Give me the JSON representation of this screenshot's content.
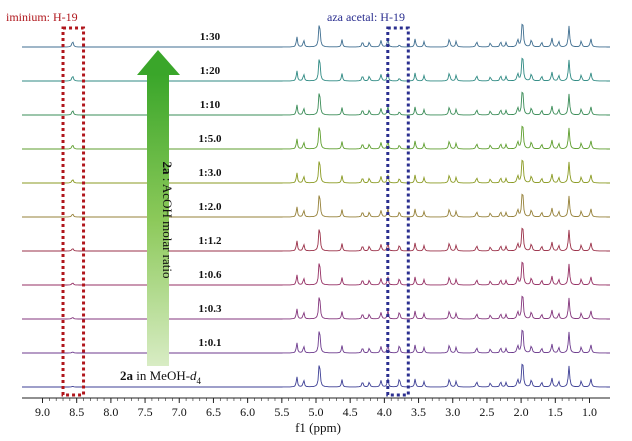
{
  "chart_data": {
    "type": "line",
    "xlabel": "f1 (ppm)",
    "x_reversed": true,
    "xlim": [
      9.3,
      0.7
    ],
    "x_ticks": [
      "9.0",
      "8.5",
      "8.0",
      "7.5",
      "7.0",
      "6.5",
      "6.0",
      "5.5",
      "5.0",
      "4.5",
      "4.0",
      "3.5",
      "3.0",
      "2.5",
      "2.0",
      "1.5",
      "1.0"
    ],
    "annotations": [
      {
        "label": "iminium: H-19",
        "ppm_range": [
          8.7,
          8.4
        ],
        "color": "#b0161c"
      },
      {
        "label": "aza acetal: H-19",
        "ppm_range": [
          3.95,
          3.65
        ],
        "color": "#2a2e8f"
      }
    ],
    "arrow_label": {
      "bold": "2a",
      "rest": " : AcOH molar ratio"
    },
    "bottom_label": {
      "bold": "2a",
      "text": " in MeOH-",
      "sym": "d",
      "sub": "4"
    },
    "series": [
      {
        "name": "1:30",
        "color": "#3f6e90"
      },
      {
        "name": "1:20",
        "color": "#2f8a83"
      },
      {
        "name": "1:10",
        "color": "#3a8c57"
      },
      {
        "name": "1:5.0",
        "color": "#5e9e2e"
      },
      {
        "name": "1:3.0",
        "color": "#8a9a22"
      },
      {
        "name": "1:2.0",
        "color": "#958038"
      },
      {
        "name": "1:1.2",
        "color": "#9a3048"
      },
      {
        "name": "1:0.6",
        "color": "#952f63"
      },
      {
        "name": "1:0.3",
        "color": "#83357c"
      },
      {
        "name": "1:0.1",
        "color": "#6c3a8d"
      },
      {
        "name": "",
        "color": "#3d3f95"
      }
    ],
    "peaks": [
      [
        8.56,
        0.2,
        0.012
      ],
      [
        5.28,
        0.35,
        0.01
      ],
      [
        5.18,
        0.25,
        0.01
      ],
      [
        4.95,
        0.9,
        0.012
      ],
      [
        4.62,
        0.25,
        0.01
      ],
      [
        4.32,
        0.2,
        0.01
      ],
      [
        4.22,
        0.18,
        0.01
      ],
      [
        4.05,
        0.22,
        0.012
      ],
      [
        3.95,
        0.3,
        0.01
      ],
      [
        3.78,
        0.25,
        0.01
      ],
      [
        3.55,
        0.28,
        0.01
      ],
      [
        3.42,
        0.18,
        0.01
      ],
      [
        3.05,
        0.28,
        0.012
      ],
      [
        2.95,
        0.2,
        0.01
      ],
      [
        2.65,
        0.18,
        0.012
      ],
      [
        2.45,
        0.15,
        0.01
      ],
      [
        2.3,
        0.2,
        0.01
      ],
      [
        2.22,
        0.15,
        0.01
      ],
      [
        2.05,
        0.25,
        0.012
      ],
      [
        1.98,
        1.0,
        0.012
      ],
      [
        1.85,
        0.25,
        0.012
      ],
      [
        1.7,
        0.18,
        0.01
      ],
      [
        1.55,
        0.3,
        0.012
      ],
      [
        1.45,
        0.2,
        0.01
      ],
      [
        1.3,
        0.7,
        0.012
      ],
      [
        1.12,
        0.22,
        0.01
      ],
      [
        0.98,
        0.28,
        0.012
      ]
    ]
  }
}
